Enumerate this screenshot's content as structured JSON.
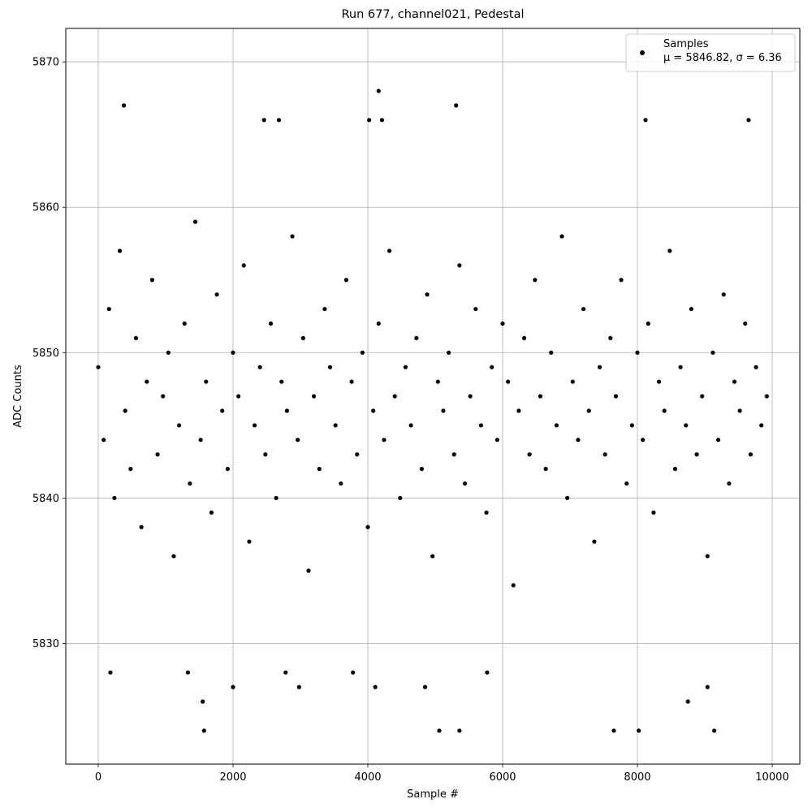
{
  "chart_data": {
    "type": "scatter",
    "title": "Run 677, channel021, Pedestal",
    "xlabel": "Sample #",
    "ylabel": "ADC Counts",
    "xlim": [
      -482,
      10410
    ],
    "ylim": [
      5821.7,
      5872.3
    ],
    "xticks": [
      0,
      2000,
      4000,
      6000,
      8000,
      10000
    ],
    "yticks": [
      5830,
      5840,
      5850,
      5860,
      5870
    ],
    "grid": true,
    "legend": "upper right",
    "series": [
      {
        "name": "Samples",
        "label": "μ = 5846.82, σ = 6.36",
        "color": "#000000",
        "x": [
          0,
          80,
          160,
          240,
          320,
          400,
          480,
          560,
          640,
          720,
          800,
          880,
          960,
          1040,
          1120,
          1200,
          1280,
          1360,
          1440,
          1520,
          1600,
          1680,
          1760,
          1840,
          1920,
          2000,
          2080,
          2160,
          2240,
          2320,
          2400,
          2480,
          2560,
          2640,
          2720,
          2800,
          2880,
          2960,
          3040,
          3120,
          3200,
          3280,
          3360,
          3440,
          3520,
          3600,
          3680,
          3760,
          3840,
          3920,
          4000,
          4080,
          4160,
          4240,
          4320,
          4400,
          4480,
          4560,
          4640,
          4720,
          4800,
          4880,
          4960,
          5040,
          5120,
          5200,
          5280,
          5360,
          5440,
          5520,
          5600,
          5680,
          5760,
          5840,
          5920,
          6000,
          6080,
          6160,
          6240,
          6320,
          6400,
          6480,
          6560,
          6640,
          6720,
          6800,
          6880,
          6960,
          7040,
          7120,
          7200,
          7280,
          7360,
          7440,
          7520,
          7600,
          7680,
          7760,
          7840,
          7920,
          8000,
          8080,
          8160,
          8240,
          8320,
          8400,
          8480,
          8560,
          8640,
          8720,
          8800,
          8880,
          8960,
          9040,
          9120,
          9200,
          9280,
          9360,
          9440,
          9520,
          9600,
          9680,
          9760,
          9840,
          9920,
          380,
          4160,
          5310,
          9650,
          1570,
          5060,
          5360,
          7650,
          8020,
          9140,
          1550,
          8750,
          2000,
          4110,
          4850,
          9040,
          2980,
          180,
          1330,
          5770,
          3780,
          2780,
          8120,
          2460,
          2680,
          4020,
          4210
        ],
        "values": [
          5849,
          5844,
          5853,
          5840,
          5857,
          5846,
          5842,
          5851,
          5838,
          5848,
          5855,
          5843,
          5847,
          5850,
          5836,
          5845,
          5852,
          5841,
          5859,
          5844,
          5848,
          5839,
          5854,
          5846,
          5842,
          5850,
          5847,
          5856,
          5837,
          5845,
          5849,
          5843,
          5852,
          5840,
          5848,
          5846,
          5858,
          5844,
          5851,
          5835,
          5847,
          5842,
          5853,
          5849,
          5845,
          5841,
          5855,
          5848,
          5843,
          5850,
          5838,
          5846,
          5852,
          5844,
          5857,
          5847,
          5840,
          5849,
          5845,
          5851,
          5842,
          5854,
          5836,
          5848,
          5846,
          5850,
          5843,
          5856,
          5841,
          5847,
          5853,
          5845,
          5839,
          5849,
          5844,
          5852,
          5848,
          5834,
          5846,
          5851,
          5843,
          5855,
          5847,
          5842,
          5850,
          5845,
          5858,
          5840,
          5848,
          5844,
          5853,
          5846,
          5837,
          5849,
          5843,
          5851,
          5847,
          5855,
          5841,
          5845,
          5850,
          5844,
          5852,
          5839,
          5848,
          5846,
          5857,
          5842,
          5849,
          5845,
          5853,
          5843,
          5847,
          5836,
          5850,
          5844,
          5854,
          5841,
          5848,
          5846,
          5852,
          5843,
          5849,
          5845,
          5847,
          5867,
          5868,
          5867,
          5866,
          5824,
          5824,
          5824,
          5824,
          5824,
          5824,
          5826,
          5826,
          5827,
          5827,
          5827,
          5827,
          5827,
          5828,
          5828,
          5828,
          5828,
          5828,
          5866,
          5866,
          5866,
          5866,
          5866
        ]
      }
    ]
  }
}
